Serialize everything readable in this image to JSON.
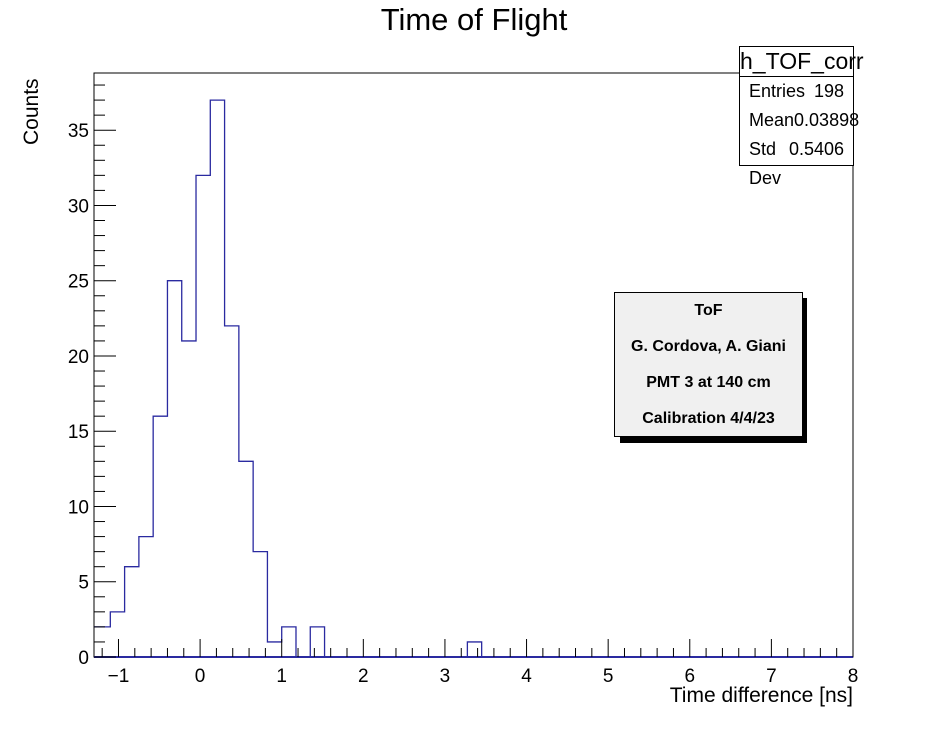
{
  "chart_data": {
    "type": "bar",
    "title": "Time of Flight",
    "xlabel": "Time difference [ns]",
    "ylabel": "Counts",
    "xlim": [
      -1.3,
      8
    ],
    "ylim": [
      0,
      38.8
    ],
    "bin_width": 0.175,
    "bin_edges_start": -1.275,
    "xticks": [
      -1,
      0,
      1,
      2,
      3,
      4,
      5,
      6,
      7,
      8
    ],
    "xtick_labels": [
      "−1",
      "0",
      "1",
      "2",
      "3",
      "4",
      "5",
      "6",
      "7",
      "8"
    ],
    "yticks": [
      0,
      5,
      10,
      15,
      20,
      25,
      30,
      35
    ],
    "ytick_labels": [
      "0",
      "5",
      "10",
      "15",
      "20",
      "25",
      "30",
      "35"
    ],
    "counts": [
      2,
      3,
      6,
      8,
      16,
      25,
      21,
      32,
      37,
      22,
      13,
      7,
      1,
      2,
      0,
      2,
      0,
      0,
      0,
      0,
      0,
      0,
      0,
      0,
      0,
      0,
      1
    ],
    "line_color": "#2a2aa0",
    "grid": false,
    "legend": "none"
  },
  "stats_box": {
    "name": "h_TOF_corr",
    "rows": [
      {
        "label": "Entries",
        "value": "198"
      },
      {
        "label": "Mean",
        "value": "0.03898"
      },
      {
        "label": "Std Dev",
        "value": "0.5406"
      }
    ]
  },
  "annotation": {
    "lines": [
      "ToF",
      "G. Cordova, A. Giani",
      "PMT 3 at 140 cm",
      "Calibration 4/4/23"
    ]
  }
}
